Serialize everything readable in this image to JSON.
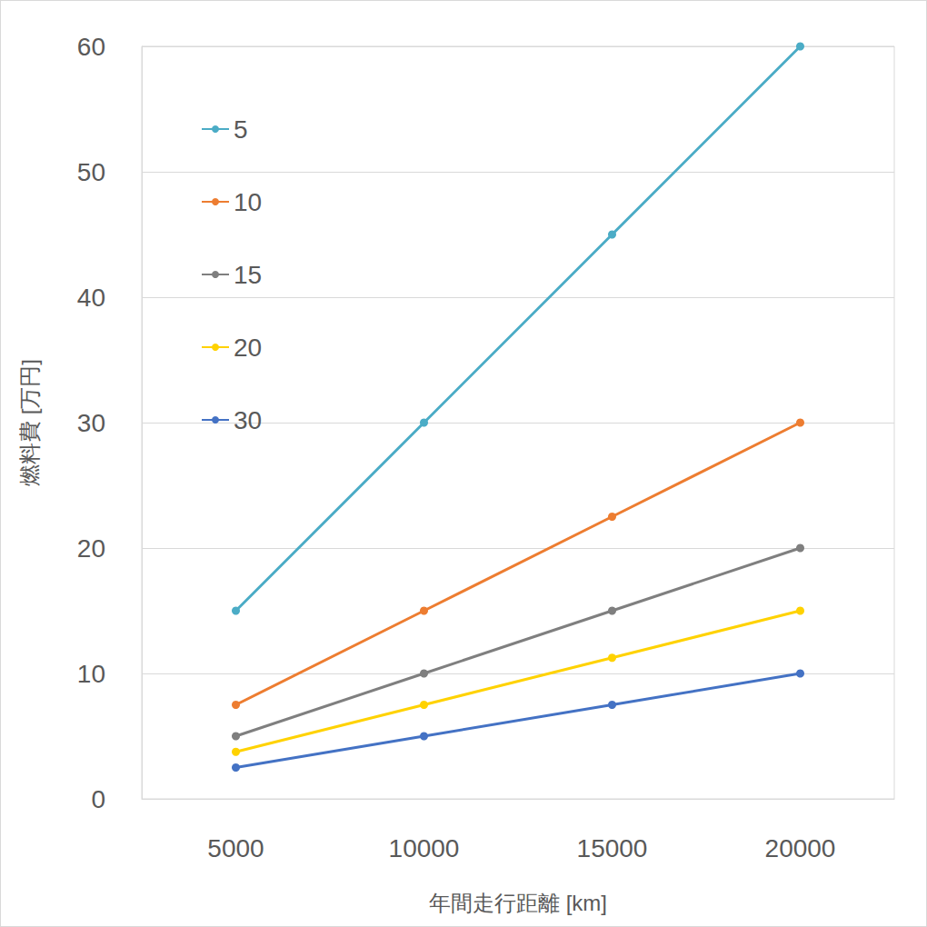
{
  "chart_data": {
    "type": "line",
    "x_label": "年間走行距離 [km]",
    "y_label": "燃料費 [万円]",
    "categories": [
      5000,
      10000,
      15000,
      20000
    ],
    "series": [
      {
        "name": "5",
        "color": "#4bacc6",
        "values": [
          15,
          30,
          45,
          60
        ]
      },
      {
        "name": "10",
        "color": "#ed7d31",
        "values": [
          7.5,
          15,
          22.5,
          30
        ]
      },
      {
        "name": "15",
        "color": "#7f7f7f",
        "values": [
          5,
          10,
          15,
          20
        ]
      },
      {
        "name": "20",
        "color": "#ffd200",
        "values": [
          3.75,
          7.5,
          11.25,
          15
        ]
      },
      {
        "name": "30",
        "color": "#4472c4",
        "values": [
          2.5,
          5,
          7.5,
          10
        ]
      }
    ],
    "ylim": [
      0,
      60
    ],
    "yticks": [
      0,
      10,
      20,
      30,
      40,
      50,
      60
    ],
    "grid": true,
    "legend": "upper left",
    "marker": "circle"
  }
}
